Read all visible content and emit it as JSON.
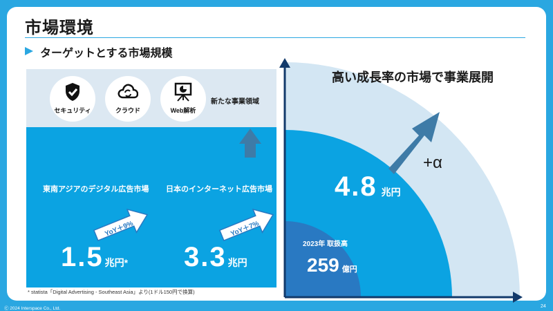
{
  "slide": {
    "title": "市場環境",
    "subtitle": "ターゲットとする市場規模",
    "copyright": "Ⓒ 2024 Interspace Co., Ltd.",
    "page_number": "24"
  },
  "new_domains": {
    "icons": [
      {
        "icon": "shield-check-icon",
        "label": "セキュリティ"
      },
      {
        "icon": "cloud-sync-icon",
        "label": "クラウド"
      },
      {
        "icon": "presentation-chart-icon",
        "label": "Web解析"
      }
    ],
    "label": "新たな事業領域"
  },
  "markets": [
    {
      "label": "東南アジアのデジタル広告市場",
      "yoy": "YoY＋9%",
      "value": "1.5",
      "unit": "兆円*"
    },
    {
      "label": "日本のインターネット広告市場",
      "yoy": "YoY＋7%",
      "value": "3.3",
      "unit": "兆円"
    }
  ],
  "right_panel": {
    "headline": "高い成長率の市場で事業展開",
    "mid_value": "4.8",
    "mid_unit": "兆円",
    "plus_alpha": "+α",
    "inner_year_label": "2023年 取扱高",
    "inner_value": "259",
    "inner_unit": "億円"
  },
  "footnote": "* statista「Digital Advertising - Southeast Asia」より(1ドル150円で換算)",
  "colors": {
    "frame": "#2aa7e1",
    "band_light": "#dce8f2",
    "band_main": "#0ba3e2",
    "arc_outer": "#d3e6f3",
    "arc_inner": "#2979c2",
    "arrow": "#3e7ba7"
  }
}
